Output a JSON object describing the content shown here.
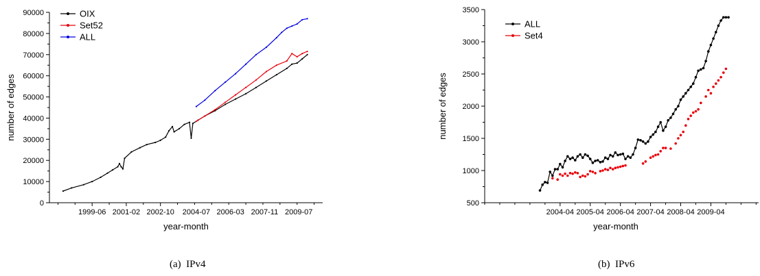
{
  "captions": [
    "(a)  IPv4",
    "(b)  IPv6"
  ],
  "chart_data": [
    {
      "type": "line",
      "xlabel": "year-month",
      "ylabel": "number of edges",
      "xlim": [
        "1997-05",
        "2010-09"
      ],
      "ylim": [
        0,
        90000
      ],
      "yticks": [
        0,
        10000,
        20000,
        30000,
        40000,
        50000,
        60000,
        70000,
        80000,
        90000
      ],
      "xticks": [
        "1999-06",
        "2001-02",
        "2002-10",
        "2004-07",
        "2006-03",
        "2007-11",
        "2009-07"
      ],
      "legend_position": "top-left",
      "grid": false,
      "series": [
        {
          "name": "OIX",
          "color": "#000000",
          "x": [
            "1998-01",
            "1998-06",
            "1999-01",
            "1999-06",
            "1999-11",
            "2000-03",
            "2000-06",
            "2000-09",
            "2000-10",
            "2000-11",
            "2000-12",
            "2001-01",
            "2001-05",
            "2001-10",
            "2002-02",
            "2002-07",
            "2002-10",
            "2003-01",
            "2003-03",
            "2003-05",
            "2003-06",
            "2003-09",
            "2003-12",
            "2004-03",
            "2004-04",
            "2004-05",
            "2004-08",
            "2004-12",
            "2005-06",
            "2005-12",
            "2006-06",
            "2006-12",
            "2007-06",
            "2007-12",
            "2008-06",
            "2008-12",
            "2009-03",
            "2009-06",
            "2009-09",
            "2009-12"
          ],
          "values": [
            5500,
            7000,
            8500,
            10000,
            12000,
            14000,
            15500,
            17000,
            18500,
            17000,
            16000,
            21000,
            24000,
            26000,
            27500,
            28500,
            29500,
            31000,
            34000,
            36000,
            33500,
            35000,
            37000,
            38000,
            30500,
            37500,
            39000,
            41000,
            43500,
            46500,
            49000,
            51500,
            54500,
            57500,
            60500,
            63500,
            65500,
            66000,
            68000,
            70000
          ]
        },
        {
          "name": "Set52",
          "color": "#e8000b",
          "x": [
            "2004-07",
            "2004-12",
            "2005-06",
            "2005-12",
            "2006-06",
            "2006-12",
            "2007-06",
            "2007-12",
            "2008-06",
            "2008-12",
            "2009-03",
            "2009-06",
            "2009-09",
            "2009-12"
          ],
          "values": [
            38500,
            41000,
            44000,
            47500,
            51000,
            54500,
            58000,
            62000,
            65000,
            67000,
            70500,
            69000,
            70500,
            71500
          ]
        },
        {
          "name": "ALL",
          "color": "#0000e0",
          "x": [
            "2004-07",
            "2004-12",
            "2005-06",
            "2005-12",
            "2006-06",
            "2006-12",
            "2007-06",
            "2007-12",
            "2008-06",
            "2008-09",
            "2008-12",
            "2009-03",
            "2009-06",
            "2009-09",
            "2009-12"
          ],
          "values": [
            45500,
            48500,
            53000,
            57000,
            61000,
            65500,
            70000,
            73500,
            78000,
            80500,
            82500,
            83500,
            84500,
            86500,
            87000
          ]
        }
      ]
    },
    {
      "type": "line",
      "xlabel": "year-month",
      "ylabel": "number of edges",
      "xlim": [
        "2001-10",
        "2010-11"
      ],
      "ylim": [
        500,
        3500
      ],
      "yticks": [
        500,
        1000,
        1500,
        2000,
        2500,
        3000,
        3500
      ],
      "xticks": [
        "2004-04",
        "2005-04",
        "2006-04",
        "2007-04",
        "2008-04",
        "2009-04"
      ],
      "legend_position": "top-left",
      "grid": false,
      "series": [
        {
          "name": "ALL",
          "color": "#000000",
          "x": [
            "2003-08",
            "2003-09",
            "2003-10",
            "2003-11",
            "2003-12",
            "2004-01",
            "2004-02",
            "2004-03",
            "2004-04",
            "2004-05",
            "2004-06",
            "2004-07",
            "2004-08",
            "2004-09",
            "2004-10",
            "2004-11",
            "2004-12",
            "2005-01",
            "2005-02",
            "2005-03",
            "2005-04",
            "2005-05",
            "2005-06",
            "2005-07",
            "2005-08",
            "2005-09",
            "2005-10",
            "2005-11",
            "2005-12",
            "2006-01",
            "2006-02",
            "2006-03",
            "2006-04",
            "2006-05",
            "2006-06",
            "2006-07",
            "2006-08",
            "2006-09",
            "2006-10",
            "2006-11",
            "2006-12",
            "2007-01",
            "2007-02",
            "2007-03",
            "2007-04",
            "2007-05",
            "2007-06",
            "2007-07",
            "2007-08",
            "2007-09",
            "2007-10",
            "2007-11",
            "2007-12",
            "2008-01",
            "2008-02",
            "2008-03",
            "2008-04",
            "2008-05",
            "2008-06",
            "2008-07",
            "2008-08",
            "2008-09",
            "2008-10",
            "2008-11",
            "2008-12",
            "2009-01",
            "2009-02",
            "2009-03",
            "2009-04",
            "2009-05",
            "2009-06",
            "2009-07",
            "2009-08",
            "2009-09",
            "2009-10",
            "2009-11"
          ],
          "values": [
            690,
            780,
            820,
            810,
            980,
            920,
            1020,
            1020,
            1100,
            1050,
            1150,
            1220,
            1180,
            1200,
            1160,
            1220,
            1250,
            1200,
            1250,
            1230,
            1180,
            1120,
            1150,
            1160,
            1130,
            1140,
            1200,
            1180,
            1240,
            1220,
            1280,
            1240,
            1250,
            1260,
            1180,
            1220,
            1200,
            1250,
            1350,
            1480,
            1470,
            1450,
            1420,
            1450,
            1520,
            1560,
            1600,
            1680,
            1750,
            1620,
            1680,
            1780,
            1820,
            1880,
            1950,
            2000,
            2100,
            2150,
            2200,
            2250,
            2300,
            2350,
            2450,
            2550,
            2570,
            2590,
            2700,
            2850,
            2950,
            3050,
            3150,
            3250,
            3330,
            3380,
            3380,
            3380
          ]
        },
        {
          "name": "Set4",
          "color": "#e8000b",
          "x": [
            "2004-01",
            "2004-03",
            "2004-04",
            "2004-05",
            "2004-06",
            "2004-07",
            "2004-08",
            "2004-09",
            "2004-10",
            "2004-11",
            "2004-12",
            "2005-01",
            "2005-02",
            "2005-03",
            "2005-04",
            "2005-05",
            "2005-06",
            "2005-08",
            "2005-09",
            "2005-10",
            "2005-11",
            "2005-12",
            "2006-01",
            "2006-02",
            "2006-03",
            "2006-04",
            "2006-05",
            "2006-06",
            "2007-01",
            "2007-02",
            "2007-04",
            "2007-05",
            "2007-06",
            "2007-07",
            "2007-08",
            "2007-09",
            "2007-10",
            "2007-12",
            "2008-02",
            "2008-03",
            "2008-04",
            "2008-05",
            "2008-06",
            "2008-07",
            "2008-08",
            "2008-09",
            "2008-10",
            "2008-11",
            "2008-12",
            "2009-02",
            "2009-03",
            "2009-04",
            "2009-05",
            "2009-06",
            "2009-07",
            "2009-08",
            "2009-09",
            "2009-10"
          ],
          "values": [
            880,
            860,
            940,
            920,
            950,
            920,
            960,
            950,
            970,
            960,
            900,
            920,
            910,
            940,
            990,
            980,
            960,
            990,
            1000,
            1020,
            1010,
            1040,
            1020,
            1040,
            1050,
            1060,
            1070,
            1080,
            1110,
            1140,
            1200,
            1220,
            1240,
            1250,
            1300,
            1350,
            1350,
            1340,
            1420,
            1500,
            1550,
            1600,
            1700,
            1800,
            1850,
            1900,
            1920,
            1950,
            2050,
            2150,
            2250,
            2200,
            2300,
            2350,
            2400,
            2450,
            2520,
            2580
          ]
        }
      ]
    }
  ]
}
